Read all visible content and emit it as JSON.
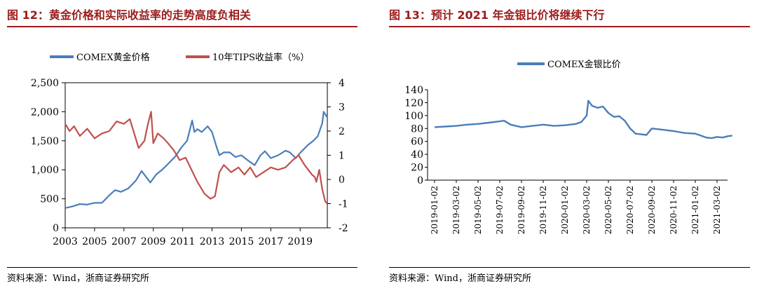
{
  "panels": {
    "left": {
      "title": "图 12：黄金价格和实际收益率的走势高度负相关",
      "source": "资料来源：Wind，浙商证券研究所"
    },
    "right": {
      "title": "图 13：预计 2021 年金银比价将继续下行",
      "source": "资料来源：Wind，浙商证券研究所"
    }
  },
  "colors": {
    "accent": "#9b1c1c",
    "gold_series": "#4a7ebb",
    "tips_series": "#c0504d",
    "ratio_series": "#4a7ebb"
  },
  "chart_data": [
    {
      "type": "line",
      "title": "黄金价格和实际收益率的走势高度负相关",
      "x_ticks": [
        "2003",
        "2005",
        "2007",
        "2009",
        "2011",
        "2013",
        "2015",
        "2017",
        "2019"
      ],
      "x_range": [
        2003,
        2020.85
      ],
      "y_left_ticks": [
        "2,500",
        "2,000",
        "1,500",
        "1,000",
        "500",
        "0"
      ],
      "y_left_range": [
        0,
        2500
      ],
      "y_right_ticks": [
        "4",
        "3",
        "2",
        "1",
        "0",
        "-1",
        "-2"
      ],
      "y_right_range": [
        -2,
        4
      ],
      "legend_position": "top",
      "series": [
        {
          "name": "COMEX黄金价格",
          "axis": "left",
          "x": [
            2003.0,
            2003.5,
            2004.0,
            2004.5,
            2005.0,
            2005.5,
            2006.0,
            2006.4,
            2006.8,
            2007.3,
            2007.8,
            2008.2,
            2008.5,
            2008.8,
            2009.2,
            2009.6,
            2010.0,
            2010.5,
            2010.9,
            2011.3,
            2011.65,
            2011.8,
            2012.0,
            2012.3,
            2012.7,
            2013.0,
            2013.3,
            2013.5,
            2013.8,
            2014.2,
            2014.6,
            2015.0,
            2015.5,
            2015.9,
            2016.3,
            2016.6,
            2017.0,
            2017.5,
            2018.0,
            2018.3,
            2018.7,
            2019.0,
            2019.5,
            2019.9,
            2020.2,
            2020.5,
            2020.6,
            2020.85
          ],
          "values": [
            340,
            370,
            410,
            400,
            430,
            430,
            560,
            650,
            620,
            680,
            810,
            980,
            880,
            780,
            920,
            1000,
            1100,
            1230,
            1380,
            1500,
            1850,
            1650,
            1700,
            1650,
            1750,
            1650,
            1400,
            1250,
            1300,
            1300,
            1220,
            1250,
            1150,
            1080,
            1250,
            1320,
            1200,
            1250,
            1330,
            1300,
            1200,
            1290,
            1420,
            1500,
            1580,
            1800,
            2000,
            1900
          ]
        },
        {
          "name": "10年TIPS收益率（%）",
          "axis": "right",
          "x": [
            2003.0,
            2003.3,
            2003.6,
            2004.0,
            2004.5,
            2005.0,
            2005.5,
            2006.0,
            2006.5,
            2007.0,
            2007.4,
            2007.8,
            2008.0,
            2008.4,
            2008.6,
            2008.85,
            2009.0,
            2009.3,
            2009.7,
            2010.0,
            2010.4,
            2010.8,
            2011.2,
            2011.6,
            2012.0,
            2012.5,
            2012.9,
            2013.2,
            2013.5,
            2013.8,
            2014.3,
            2014.8,
            2015.2,
            2015.6,
            2016.0,
            2016.5,
            2017.0,
            2017.5,
            2018.0,
            2018.5,
            2018.9,
            2019.3,
            2019.8,
            2020.0,
            2020.1,
            2020.3,
            2020.5,
            2020.7,
            2020.85
          ],
          "values": [
            2.3,
            2.0,
            2.2,
            1.8,
            2.1,
            1.7,
            1.9,
            2.0,
            2.4,
            2.3,
            2.5,
            1.7,
            1.3,
            1.6,
            2.2,
            2.8,
            1.5,
            1.9,
            1.7,
            1.5,
            1.2,
            0.8,
            0.9,
            0.4,
            -0.1,
            -0.6,
            -0.8,
            -0.7,
            0.3,
            0.6,
            0.3,
            0.5,
            0.2,
            0.5,
            0.1,
            0.3,
            0.5,
            0.4,
            0.5,
            0.8,
            1.0,
            0.6,
            0.2,
            0.1,
            -0.1,
            0.4,
            -0.4,
            -0.9,
            -1.0
          ]
        }
      ]
    },
    {
      "type": "line",
      "title": "预计 2021 年金银比价将继续下行",
      "x_ticks": [
        "2019-01-02",
        "2019-03-02",
        "2019-05-02",
        "2019-07-02",
        "2019-09-02",
        "2019-11-02",
        "2020-01-02",
        "2020-03-02",
        "2020-05-02",
        "2020-07-02",
        "2020-09-02",
        "2020-11-02",
        "2021-01-02",
        "2021-03-02"
      ],
      "x_range": [
        0,
        27.4
      ],
      "y_ticks": [
        "140",
        "120",
        "100",
        "80",
        "60",
        "40",
        "20",
        "0"
      ],
      "y_range": [
        0,
        140
      ],
      "legend_position": "top",
      "series": [
        {
          "name": "COMEX金银比价",
          "x": [
            0.0,
            1.0,
            2.0,
            3.0,
            4.0,
            5.0,
            6.0,
            6.4,
            7.0,
            8.0,
            9.0,
            10.0,
            11.0,
            12.0,
            13.0,
            13.5,
            14.0,
            14.15,
            14.5,
            15.0,
            15.5,
            16.0,
            16.5,
            17.0,
            17.5,
            18.0,
            18.5,
            19.0,
            19.5,
            20.0,
            20.5,
            21.0,
            21.5,
            22.0,
            23.0,
            24.0,
            24.5,
            25.0,
            25.5,
            26.0,
            26.5,
            27.0,
            27.4
          ],
          "values": [
            82,
            83,
            84,
            86,
            87,
            89,
            91,
            92,
            86,
            82,
            84,
            86,
            84,
            85,
            87,
            90,
            100,
            123,
            115,
            112,
            114,
            104,
            98,
            99,
            92,
            80,
            72,
            71,
            70,
            80,
            79,
            78,
            77,
            76,
            73,
            72,
            69,
            66,
            65,
            67,
            66,
            68,
            69
          ]
        }
      ]
    }
  ]
}
